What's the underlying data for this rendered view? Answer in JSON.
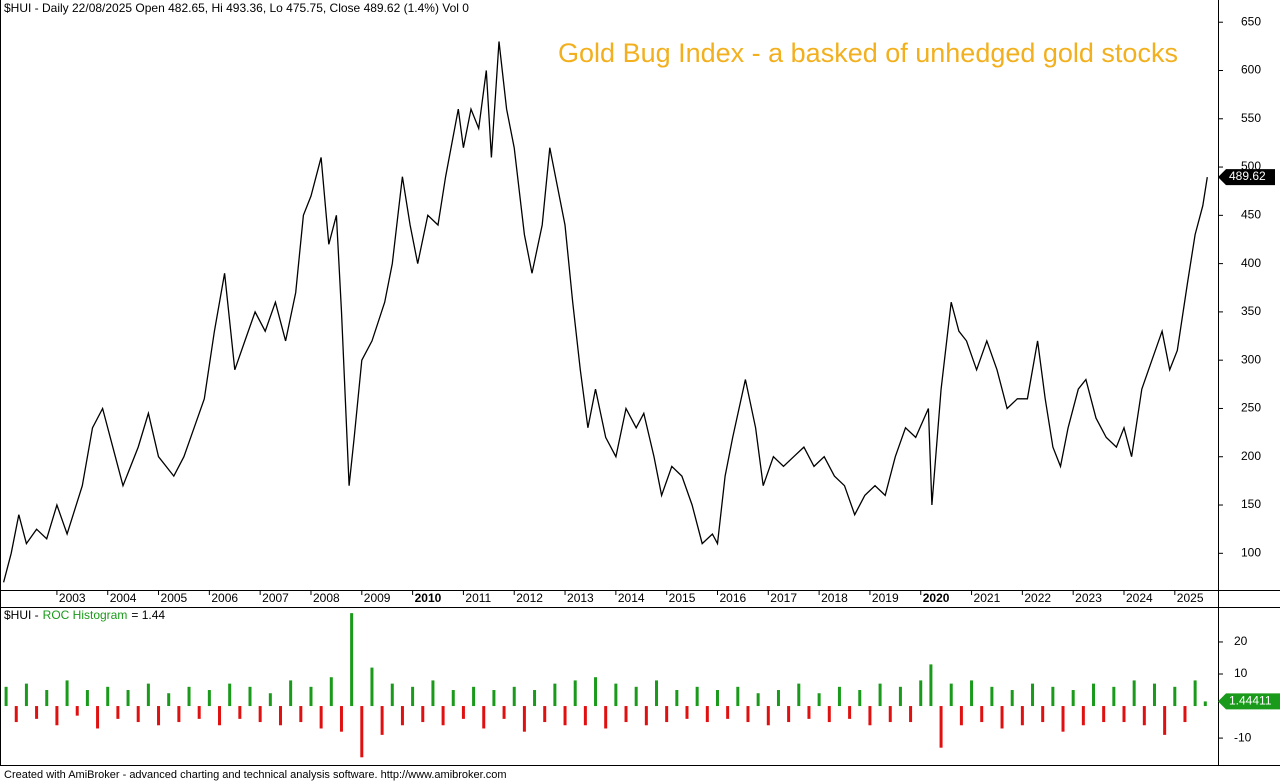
{
  "chart_data": [
    {
      "type": "line",
      "title": "$HUI - Daily 22/08/2025 Open 482.65, Hi 493.36, Lo 475.75, Close 489.62 (1.4%) Vol 0",
      "annotation": "Gold Bug Index - a basked of unhedged gold stocks",
      "x": [
        2001.95,
        2002.1,
        2002.25,
        2002.4,
        2002.6,
        2002.8,
        2003.0,
        2003.2,
        2003.5,
        2003.7,
        2003.9,
        2004.1,
        2004.3,
        2004.6,
        2004.8,
        2005.0,
        2005.3,
        2005.5,
        2005.7,
        2005.9,
        2006.1,
        2006.3,
        2006.5,
        2006.7,
        2006.9,
        2007.1,
        2007.3,
        2007.5,
        2007.7,
        2007.85,
        2008.0,
        2008.2,
        2008.35,
        2008.5,
        2008.6,
        2008.75,
        2008.85,
        2009.0,
        2009.2,
        2009.45,
        2009.6,
        2009.8,
        2009.95,
        2010.1,
        2010.3,
        2010.5,
        2010.65,
        2010.9,
        2011.0,
        2011.15,
        2011.3,
        2011.45,
        2011.55,
        2011.7,
        2011.85,
        2012.0,
        2012.2,
        2012.35,
        2012.55,
        2012.7,
        2012.85,
        2013.0,
        2013.15,
        2013.3,
        2013.45,
        2013.6,
        2013.8,
        2014.0,
        2014.2,
        2014.4,
        2014.55,
        2014.75,
        2014.9,
        2015.1,
        2015.3,
        2015.5,
        2015.7,
        2015.9,
        2016.0,
        2016.15,
        2016.3,
        2016.55,
        2016.75,
        2016.9,
        2017.1,
        2017.3,
        2017.5,
        2017.7,
        2017.9,
        2018.1,
        2018.3,
        2018.5,
        2018.7,
        2018.9,
        2019.1,
        2019.3,
        2019.5,
        2019.7,
        2019.9,
        2020.15,
        2020.22,
        2020.4,
        2020.6,
        2020.75,
        2020.9,
        2021.1,
        2021.3,
        2021.5,
        2021.7,
        2021.9,
        2022.1,
        2022.3,
        2022.45,
        2022.6,
        2022.75,
        2022.9,
        2023.1,
        2023.25,
        2023.45,
        2023.65,
        2023.85,
        2024.0,
        2024.15,
        2024.35,
        2024.55,
        2024.75,
        2024.9,
        2025.05,
        2025.25,
        2025.4,
        2025.55,
        2025.64
      ],
      "series": [
        {
          "name": "$HUI",
          "color": "#000000",
          "values": [
            70,
            100,
            140,
            110,
            125,
            115,
            150,
            120,
            170,
            230,
            250,
            210,
            170,
            210,
            245,
            200,
            180,
            200,
            230,
            260,
            330,
            390,
            290,
            320,
            350,
            330,
            360,
            320,
            370,
            450,
            470,
            510,
            420,
            450,
            350,
            170,
            220,
            300,
            320,
            360,
            400,
            490,
            440,
            400,
            450,
            440,
            490,
            560,
            520,
            560,
            540,
            600,
            510,
            630,
            560,
            520,
            430,
            390,
            440,
            520,
            480,
            440,
            360,
            290,
            230,
            270,
            220,
            200,
            250,
            230,
            245,
            200,
            160,
            190,
            180,
            150,
            110,
            120,
            110,
            180,
            220,
            280,
            230,
            170,
            200,
            190,
            200,
            210,
            190,
            200,
            180,
            170,
            140,
            160,
            170,
            160,
            200,
            230,
            220,
            250,
            150,
            270,
            360,
            330,
            320,
            290,
            320,
            290,
            250,
            260,
            260,
            320,
            260,
            210,
            190,
            230,
            270,
            280,
            240,
            220,
            210,
            230,
            200,
            270,
            300,
            330,
            290,
            310,
            380,
            430,
            460,
            489.62
          ]
        }
      ],
      "xlim": [
        2001.88,
        2025.85
      ],
      "xticks": [
        2003,
        2004,
        2005,
        2006,
        2007,
        2008,
        2009,
        2010,
        2011,
        2012,
        2013,
        2014,
        2015,
        2016,
        2017,
        2018,
        2019,
        2020,
        2021,
        2022,
        2023,
        2024,
        2025
      ],
      "major_xticks": [
        2010,
        2020
      ],
      "ylim": [
        62,
        673
      ],
      "yticks": [
        100,
        150,
        200,
        250,
        300,
        350,
        400,
        450,
        500,
        550,
        600,
        650
      ]
    },
    {
      "type": "histogram",
      "title": "$HUI -",
      "indicator": "ROC Histogram",
      "title_value": "= 1.44",
      "x": [
        2002.0,
        2002.2,
        2002.4,
        2002.6,
        2002.8,
        2003.0,
        2003.2,
        2003.4,
        2003.6,
        2003.8,
        2004.0,
        2004.2,
        2004.4,
        2004.6,
        2004.8,
        2005.0,
        2005.2,
        2005.4,
        2005.6,
        2005.8,
        2006.0,
        2006.2,
        2006.4,
        2006.6,
        2006.8,
        2007.0,
        2007.2,
        2007.4,
        2007.6,
        2007.8,
        2008.0,
        2008.2,
        2008.4,
        2008.6,
        2008.8,
        2009.0,
        2009.2,
        2009.4,
        2009.6,
        2009.8,
        2010.0,
        2010.2,
        2010.4,
        2010.6,
        2010.8,
        2011.0,
        2011.2,
        2011.4,
        2011.6,
        2011.8,
        2012.0,
        2012.2,
        2012.4,
        2012.6,
        2012.8,
        2013.0,
        2013.2,
        2013.4,
        2013.6,
        2013.8,
        2014.0,
        2014.2,
        2014.4,
        2014.6,
        2014.8,
        2015.0,
        2015.2,
        2015.4,
        2015.6,
        2015.8,
        2016.0,
        2016.2,
        2016.4,
        2016.6,
        2016.8,
        2017.0,
        2017.2,
        2017.4,
        2017.6,
        2017.8,
        2018.0,
        2018.2,
        2018.4,
        2018.6,
        2018.8,
        2019.0,
        2019.2,
        2019.4,
        2019.6,
        2019.8,
        2020.0,
        2020.2,
        2020.4,
        2020.6,
        2020.8,
        2021.0,
        2021.2,
        2021.4,
        2021.6,
        2021.8,
        2022.0,
        2022.2,
        2022.4,
        2022.6,
        2022.8,
        2023.0,
        2023.2,
        2023.4,
        2023.6,
        2023.8,
        2024.0,
        2024.2,
        2024.4,
        2024.6,
        2024.8,
        2025.0,
        2025.2,
        2025.4,
        2025.6
      ],
      "values": [
        6,
        -5,
        7,
        -4,
        5,
        -6,
        8,
        -3,
        5,
        -7,
        6,
        -4,
        5,
        -5,
        7,
        -6,
        4,
        -5,
        6,
        -4,
        5,
        -6,
        7,
        -4,
        6,
        -5,
        4,
        -6,
        8,
        -5,
        6,
        -7,
        9,
        -8,
        29,
        -16,
        12,
        -9,
        7,
        -6,
        6,
        -5,
        8,
        -6,
        5,
        -4,
        6,
        -7,
        5,
        -4,
        6,
        -8,
        5,
        -5,
        7,
        -6,
        8,
        -6,
        9,
        -7,
        7,
        -5,
        6,
        -6,
        8,
        -5,
        5,
        -4,
        6,
        -5,
        5,
        -4,
        6,
        -5,
        4,
        -6,
        5,
        -5,
        7,
        -4,
        4,
        -5,
        6,
        -4,
        5,
        -6,
        7,
        -5,
        6,
        -5,
        8,
        13,
        -13,
        7,
        -6,
        8,
        -5,
        6,
        -7,
        5,
        -6,
        7,
        -5,
        6,
        -8,
        5,
        -6,
        7,
        -5,
        6,
        -5,
        8,
        -6,
        7,
        -9,
        6,
        -5,
        8,
        1.44
      ],
      "last_value": 1.44411,
      "colors": {
        "up": "#1a9a1a",
        "down": "#e01010",
        "title": "#1a9a1a"
      },
      "xlim": [
        2001.88,
        2025.85
      ],
      "ylim": [
        -18.4,
        30.6
      ],
      "yticks": [
        -10,
        10,
        20
      ]
    }
  ],
  "footer": "Created with AmiBroker - advanced charting and technical analysis software. http://www.amibroker.com"
}
